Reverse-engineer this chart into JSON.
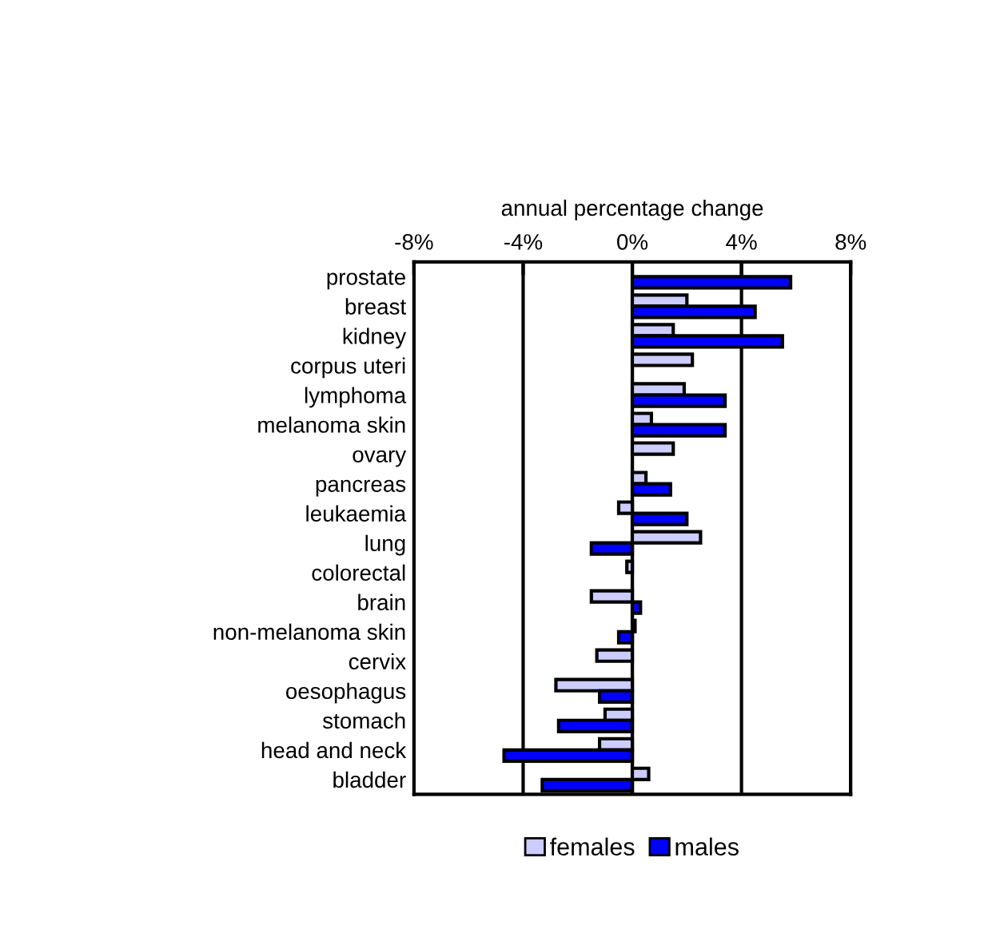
{
  "chart_data": {
    "type": "bar",
    "orientation": "horizontal",
    "xlabel": "annual percentage change",
    "categories": [
      "prostate",
      "breast",
      "kidney",
      "corpus uteri",
      "lymphoma",
      "melanoma skin",
      "ovary",
      "pancreas",
      "leukaemia",
      "lung",
      "colorectal",
      "brain",
      "non-melanoma skin",
      "cervix",
      "oesophagus",
      "stomach",
      "head and neck",
      "bladder"
    ],
    "series": [
      {
        "name": "females",
        "color": "#ccccff",
        "values": [
          null,
          2.0,
          1.5,
          2.2,
          1.9,
          0.7,
          1.5,
          0.5,
          -0.5,
          2.5,
          -0.2,
          -1.5,
          0.1,
          -1.3,
          -2.8,
          -1.0,
          -1.2,
          0.6
        ]
      },
      {
        "name": "males",
        "color": "#0000ff",
        "values": [
          5.8,
          4.5,
          5.5,
          null,
          3.4,
          3.4,
          null,
          1.4,
          2.0,
          -1.5,
          null,
          0.3,
          -0.5,
          null,
          -1.2,
          -2.7,
          -4.7,
          -3.3
        ]
      }
    ],
    "xlim": [
      -8,
      8
    ],
    "xticks": [
      {
        "value": -8,
        "label": "-8%"
      },
      {
        "value": -4,
        "label": "-4%"
      },
      {
        "value": 0,
        "label": "0%"
      },
      {
        "value": 4,
        "label": "4%"
      },
      {
        "value": 8,
        "label": "8%"
      }
    ],
    "grid": "x",
    "legend": "bottom"
  }
}
